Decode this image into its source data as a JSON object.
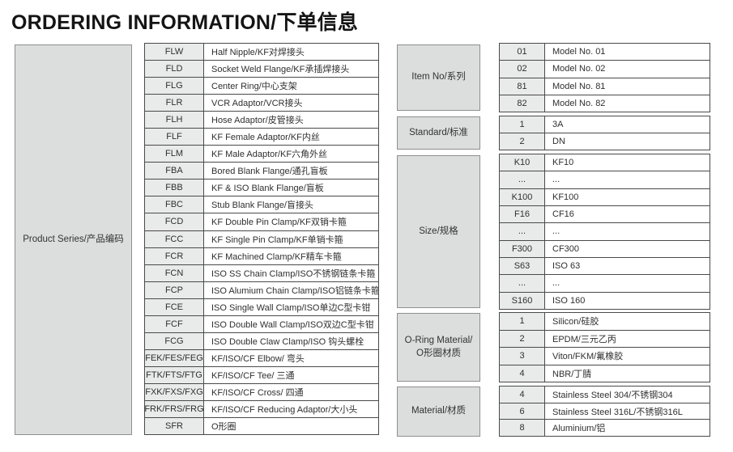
{
  "title": "ORDERING INFORMATION/下单信息",
  "colors": {
    "label_box_fill": "#dcdddd",
    "label_box_border": "#8e8f8f",
    "code_cell_fill": "#e9eaea",
    "table_border": "#4a4a4a",
    "text": "#2f2f2f"
  },
  "product_series": {
    "label": "Product Series/产品编码",
    "rows": [
      [
        "FLW",
        "Half Nipple/KF对焊接头"
      ],
      [
        "FLD",
        "Socket Weld Flange/KF承插焊接头"
      ],
      [
        "FLG",
        "Center Ring/中心支架"
      ],
      [
        "FLR",
        "VCR Adaptor/VCR接头"
      ],
      [
        "FLH",
        "Hose Adaptor/皮管接头"
      ],
      [
        "FLF",
        "KF Female Adaptor/KF内丝"
      ],
      [
        "FLM",
        "KF Male Adaptor/KF六角外丝"
      ],
      [
        "FBA",
        "Bored Blank Flange/通孔盲板"
      ],
      [
        "FBB",
        "KF & ISO Blank Flange/盲板"
      ],
      [
        "FBC",
        "Stub Blank Flange/盲接头"
      ],
      [
        "FCD",
        "KF Double Pin Clamp/KF双销卡箍"
      ],
      [
        "FCC",
        "KF Single Pin Clamp/KF单销卡箍"
      ],
      [
        "FCR",
        "KF Machined Clamp/KF精车卡箍"
      ],
      [
        "FCN",
        "ISO SS Chain Clamp/ISO不锈钢链条卡箍"
      ],
      [
        "FCP",
        "ISO Alumium Chain Clamp/ISO铝链条卡箍"
      ],
      [
        "FCE",
        "ISO Single Wall Clamp/ISO单边C型卡钳"
      ],
      [
        "FCF",
        "ISO Double Wall Clamp/ISO双边C型卡钳"
      ],
      [
        "FCG",
        "ISO Double Claw Clamp/ISO 钩头螺栓"
      ],
      [
        "FEK/FES/FEG",
        "KF/ISO/CF Elbow/ 弯头"
      ],
      [
        "FTK/FTS/FTG",
        "KF/ISO/CF Tee/ 三通"
      ],
      [
        "FXK/FXS/FXG",
        "KF/ISO/CF Cross/ 四通"
      ],
      [
        "FRK/FRS/FRG",
        "KF/ISO/CF Reducing Adaptor/大小头"
      ],
      [
        "SFR",
        "O形圈"
      ]
    ]
  },
  "right_groups": [
    {
      "label": "Item No/系列",
      "rows": [
        [
          "01",
          "Model No. 01"
        ],
        [
          "02",
          "Model No. 02"
        ],
        [
          "81",
          "Model No. 81"
        ],
        [
          "82",
          "Model No. 82"
        ]
      ]
    },
    {
      "label": "Standard/标准",
      "rows": [
        [
          "1",
          "3A"
        ],
        [
          "2",
          "DN"
        ]
      ]
    },
    {
      "label": "Size/规格",
      "rows": [
        [
          "K10",
          "KF10"
        ],
        [
          "...",
          "..."
        ],
        [
          "K100",
          "KF100"
        ],
        [
          "F16",
          "CF16"
        ],
        [
          "...",
          "..."
        ],
        [
          "F300",
          "CF300"
        ],
        [
          "S63",
          "ISO 63"
        ],
        [
          "...",
          "..."
        ],
        [
          "S160",
          "ISO 160"
        ]
      ]
    },
    {
      "label": "O-Ring Material/ O形圈材质",
      "rows": [
        [
          "1",
          "Silicon/硅胶"
        ],
        [
          "2",
          "EPDM/三元乙丙"
        ],
        [
          "3",
          "Viton/FKM/氟橡胶"
        ],
        [
          "4",
          "NBR/丁腈"
        ]
      ]
    },
    {
      "label": "Material/材质",
      "rows": [
        [
          "4",
          "Stainless Steel 304/不锈钢304"
        ],
        [
          "6",
          "Stainless Steel 316L/不锈钢316L"
        ],
        [
          "8",
          "Aluminium/铝"
        ]
      ]
    }
  ]
}
